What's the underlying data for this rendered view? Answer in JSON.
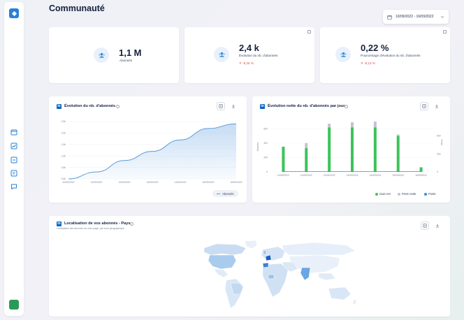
{
  "page": {
    "title": "Communauté"
  },
  "date_range": "10/09/2022 - 16/09/2022",
  "kpis": [
    {
      "value": "1,1 M",
      "label": "Abonnés",
      "delta": ""
    },
    {
      "value": "2,4 k",
      "label": "Évolution du nb. d'abonnés",
      "delta": "-8,25 %"
    },
    {
      "value": "0,22 %",
      "label": "Pourcentage d'évolution du nb. d'abonnés",
      "delta": "-8,13 %"
    }
  ],
  "chart1": {
    "title": "Évolution du nb. d'abonnés",
    "legend": "Abonnés",
    "color": "#5b9bd5",
    "chart_data": {
      "type": "area",
      "x": [
        "10/09/2022",
        "11/09/2022",
        "12/09/2022",
        "13/09/2022",
        "14/09/2022",
        "15/09/2022",
        "16/09/2022"
      ],
      "series": [
        {
          "name": "Abonnés",
          "values": [
            0.0,
            0.3,
            0.8,
            1.2,
            1.7,
            2.2,
            2.4
          ]
        }
      ],
      "y_tick_labels": [
        "0,0k",
        "0,5k",
        "1,0k",
        "1,5k",
        "2,0k",
        "2,5k"
      ],
      "ylim": [
        0,
        2.5
      ],
      "grid": true,
      "legend_position": "bottom-right"
    }
  },
  "chart2": {
    "title": "Évolution nette du nb. d'abonnés par jour",
    "legend": [
      {
        "label": "Gain net",
        "color": "#3cc35a"
      },
      {
        "label": "Perte nette",
        "color": "#bfc5cf"
      },
      {
        "label": "Posts",
        "color": "#3b8fd6"
      }
    ],
    "chart_data": {
      "type": "bar",
      "categories": [
        "10/09/2022",
        "11/09/2022",
        "12/09/2022",
        "13/09/2022",
        "14/09/2022",
        "15/09/2022",
        "16/09/2022"
      ],
      "series": [
        {
          "name": "Gain net",
          "values": [
            350,
            330,
            620,
            620,
            620,
            500,
            60
          ]
        },
        {
          "name": "Perte nette",
          "values": [
            0,
            70,
            50,
            70,
            80,
            20,
            10
          ]
        },
        {
          "name": "Posts",
          "values": [
            0,
            0,
            0,
            0,
            0,
            0,
            0
          ]
        }
      ],
      "y_left_ticks": [
        "0",
        "200",
        "400",
        "600"
      ],
      "y_right_ticks": [
        "0",
        "250",
        "500"
      ],
      "y_left_label": "Abonnés",
      "y_right_label": "Posts",
      "ylim": [
        0,
        700
      ],
      "legend_position": "bottom-right"
    }
  },
  "map": {
    "title": "Localisation de vos abonnés - Pays",
    "subtitle": "Localisation des abonnés de votre page, par zone géographique"
  },
  "colors": {
    "accent": "#2b7fd4",
    "linkedin": "#0a66c2",
    "negative": "#e04b4b"
  }
}
